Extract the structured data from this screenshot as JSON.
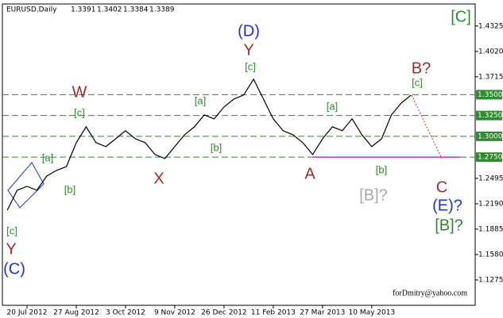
{
  "chart_data": {
    "type": "line",
    "header": {
      "symbol": "EURUSD,Daily",
      "open": 1.3391,
      "high": 1.3402,
      "low": 1.3384,
      "close": 1.3389
    },
    "footer": "forDmitry@yahoo.com",
    "categories": [
      null,
      null,
      "20 Jul 2012",
      null,
      null,
      null,
      null,
      "27 Aug 2012",
      null,
      null,
      null,
      null,
      "3 Oct 2012",
      null,
      null,
      null,
      null,
      "9 Nov 2012",
      null,
      null,
      null,
      null,
      "26 Dec 2012",
      null,
      null,
      null,
      null,
      "11 Feb 2013",
      null,
      null,
      null,
      null,
      "27 Mar 2013",
      null,
      null,
      null,
      null,
      "10 May 2013",
      null,
      null,
      null,
      null,
      null,
      null,
      null,
      null,
      null,
      null
    ],
    "values": [
      1.2113,
      1.2352,
      1.2399,
      1.2352,
      1.2523,
      1.259,
      1.2637,
      1.2924,
      1.3114,
      1.2924,
      1.2876,
      1.2971,
      1.3067,
      1.2971,
      1.2924,
      1.2781,
      1.2733,
      1.2876,
      1.3019,
      1.3114,
      1.3257,
      1.321,
      1.3353,
      1.3448,
      1.3496,
      1.3687,
      1.3448,
      1.321,
      1.3067,
      1.3019,
      1.2924,
      1.2781,
      1.2971,
      1.3114,
      1.3067,
      1.321,
      1.3019,
      1.2876,
      1.2971,
      1.3257,
      1.34,
      1.3496,
      null,
      null,
      null,
      null,
      null,
      null
    ],
    "color": "#000000",
    "ylim": [
      1.097,
      1.459
    ],
    "yticks": [
      1.4325,
      {
        "value": 1.402,
        "label": "1.4020"
      },
      1.3715,
      1.2495,
      {
        "value": 1.219,
        "label": "1.2190"
      },
      1.1885,
      {
        "value": 1.158,
        "label": "1.1580"
      },
      1.1275
    ],
    "levels": [
      {
        "value": 1.35,
        "label": "1.3500"
      },
      {
        "value": 1.325,
        "label": "1.3250"
      },
      {
        "value": 1.3,
        "label": "1.3000"
      },
      {
        "value": 1.275,
        "label": "1.2750"
      }
    ],
    "level_color": "#2e8b2e",
    "support": {
      "value": 1.275,
      "color": "#cc33cc"
    },
    "annotations": [
      {
        "text": "[C]",
        "color": "#2e8b2e"
      },
      {
        "text": "(D)",
        "color": "#2233cc"
      },
      {
        "text": "Y",
        "color": "#a52a2a"
      },
      {
        "text": "[c]",
        "color": "#2e8b2e"
      },
      {
        "text": "W",
        "color": "#a52a2a"
      },
      {
        "text": "[c]",
        "color": "#2e8b2e"
      },
      {
        "text": "[a]",
        "color": "#2e8b2e"
      },
      {
        "text": "[b]",
        "color": "#2e8b2e"
      },
      {
        "text": "X",
        "color": "#a52a2a"
      },
      {
        "text": "[a]",
        "color": "#2e8b2e"
      },
      {
        "text": "[b]",
        "color": "#2e8b2e"
      },
      {
        "text": "[c]",
        "color": "#2e8b2e"
      },
      {
        "text": "Y",
        "color": "#a52a2a"
      },
      {
        "text": "(C)",
        "color": "#2233cc"
      },
      {
        "text": "[a]",
        "color": "#2e8b2e"
      },
      {
        "text": "A",
        "color": "#a52a2a"
      },
      {
        "text": "[b]",
        "color": "#2e8b2e"
      },
      {
        "text": "[B]?",
        "color": "#aaaaaa"
      },
      {
        "text": "B?",
        "color": "#a52a2a"
      },
      {
        "text": "[c]",
        "color": "#2e8b2e"
      },
      {
        "text": "C",
        "color": "#a52a2a"
      },
      {
        "text": "(E)?",
        "color": "#2233cc"
      },
      {
        "text": "[B]?",
        "color": "#2e8b2e"
      }
    ]
  }
}
